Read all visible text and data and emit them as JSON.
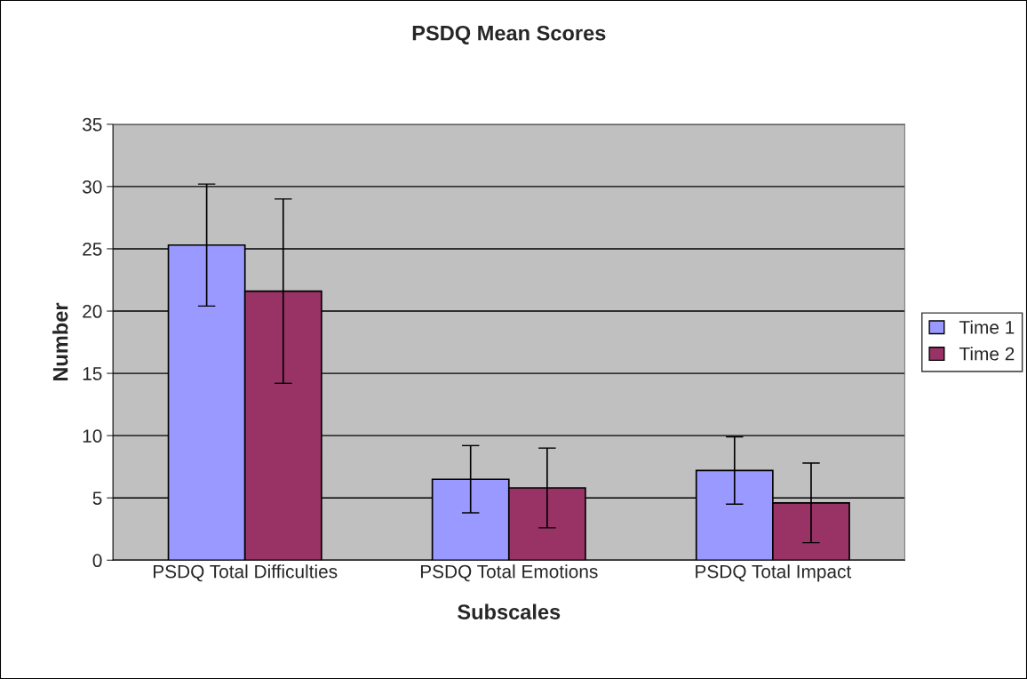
{
  "chart_data": {
    "type": "bar",
    "title": "PSDQ Mean Scores",
    "xlabel": "Subscales",
    "ylabel": "Number",
    "categories": [
      "PSDQ Total Difficulties",
      "PSDQ Total Emotions",
      "PSDQ Total Impact"
    ],
    "series": [
      {
        "name": "Time 1",
        "color": "#9999ff",
        "values": [
          25.3,
          6.5,
          7.2
        ],
        "errors": [
          4.9,
          2.7,
          2.7
        ]
      },
      {
        "name": "Time 2",
        "color": "#993366",
        "values": [
          21.6,
          5.8,
          4.6
        ],
        "errors": [
          7.4,
          3.2,
          3.2
        ]
      }
    ],
    "ylim": [
      0,
      35
    ],
    "yticks": [
      0,
      5,
      10,
      15,
      20,
      25,
      30,
      35
    ],
    "grid": "y",
    "legend": "right"
  }
}
